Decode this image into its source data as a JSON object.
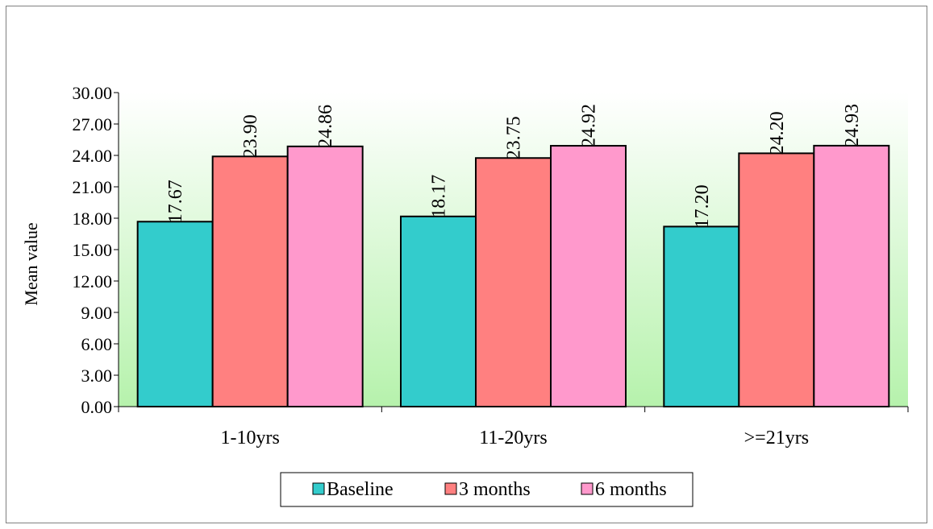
{
  "chart_data": {
    "type": "bar",
    "title": "",
    "xlabel": "",
    "ylabel": "Mean value",
    "ylim": [
      0,
      30
    ],
    "ytick_step": 3,
    "ytick_labels": [
      "0.00",
      "3.00",
      "6.00",
      "9.00",
      "12.00",
      "15.00",
      "18.00",
      "21.00",
      "24.00",
      "27.00",
      "30.00"
    ],
    "categories": [
      "1-10yrs",
      "11-20yrs",
      ">=21yrs"
    ],
    "series": [
      {
        "name": "Baseline",
        "color": "#33CCCC",
        "values": [
          17.67,
          18.17,
          17.2
        ],
        "labels": [
          "17.67",
          "18.17",
          "17.20"
        ]
      },
      {
        "name": "3 months",
        "color": "#FF8080",
        "values": [
          23.9,
          23.75,
          24.2
        ],
        "labels": [
          "23.90",
          "23.75",
          "24.20"
        ]
      },
      {
        "name": "6 months",
        "color": "#FF99CC",
        "values": [
          24.86,
          24.92,
          24.93
        ],
        "labels": [
          "24.86",
          "24.92",
          "24.93"
        ]
      }
    ],
    "plot_background": "green-gradient",
    "grid": false,
    "legend_position": "bottom"
  }
}
